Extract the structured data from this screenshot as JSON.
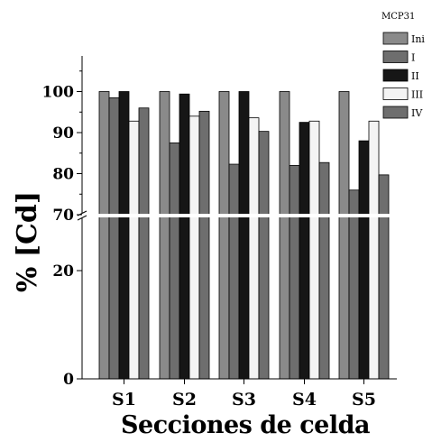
{
  "chart_data": {
    "type": "bar",
    "xlabel": "Secciones de celda",
    "ylabel": "%  [Cd]",
    "legend_title": "MCP31",
    "legend_position": "top-right",
    "grid": false,
    "categories": [
      "S1",
      "S2",
      "S3",
      "S4",
      "S5"
    ],
    "y_ticks": [
      "0",
      "20",
      "70",
      "80",
      "90",
      "100"
    ],
    "y_break": [
      30,
      70
    ],
    "ylim": [
      0,
      107
    ],
    "series": [
      {
        "name": "Ini",
        "color": "#8a8a8a",
        "values": [
          100,
          100,
          100,
          100,
          100
        ]
      },
      {
        "name": "I",
        "color": "#6e6e6e",
        "values": [
          98.5,
          87.5,
          82.3,
          82,
          76
        ]
      },
      {
        "name": "II",
        "color": "#161616",
        "values": [
          100,
          99.4,
          100,
          92.5,
          88
        ]
      },
      {
        "name": "III",
        "color": "#f4f4f4",
        "values": [
          92.8,
          94,
          93.6,
          92.8,
          92.8
        ]
      },
      {
        "name": "IV",
        "color": "#6e6e6e",
        "values": [
          96,
          95.2,
          90.3,
          82.7,
          79.7
        ]
      }
    ]
  }
}
